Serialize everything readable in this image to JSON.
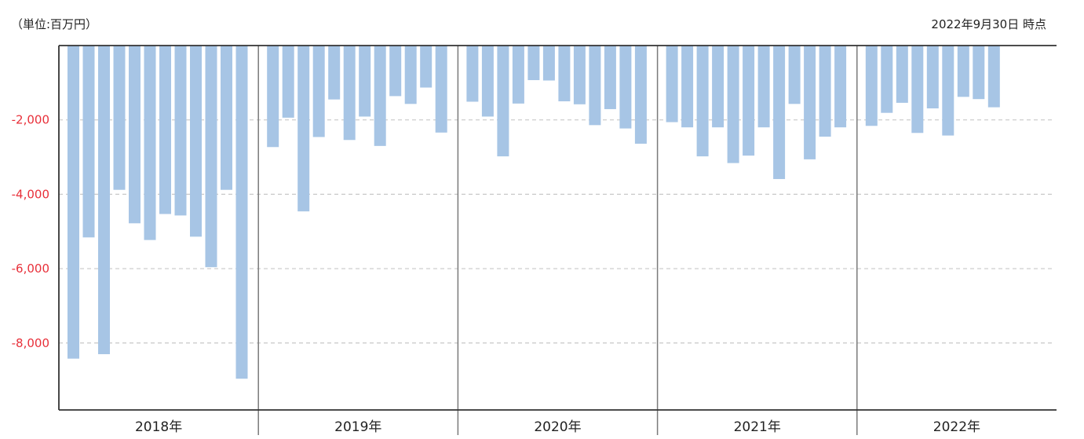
{
  "header": {
    "unit_label": "（単位:百万円）",
    "as_of": "2022年9月30日 時点"
  },
  "chart_data": {
    "type": "bar",
    "ylim": [
      -9800,
      0
    ],
    "ytick_values": [
      -2000,
      -4000,
      -6000,
      -8000
    ],
    "ytick_labels": [
      "-2,000",
      "-4,000",
      "-6,000",
      "-8,000"
    ],
    "grid": "horizontal dashed",
    "bar_color": "#a7c5e5",
    "tick_color": "#e8303a",
    "groups": [
      {
        "label": "2018年",
        "values": [
          -8420,
          -5160,
          -8300,
          -3880,
          -4780,
          -5230,
          -4530,
          -4570,
          -5140,
          -5960,
          -3880,
          -8960
        ]
      },
      {
        "label": "2019年",
        "values": [
          -2730,
          -1940,
          -4460,
          -2460,
          -1450,
          -2540,
          -1910,
          -2700,
          -1360,
          -1570,
          -1130,
          -2340
        ]
      },
      {
        "label": "2020年",
        "values": [
          -1510,
          -1910,
          -2980,
          -1560,
          -930,
          -940,
          -1500,
          -1580,
          -2140,
          -1710,
          -2230,
          -2640
        ]
      },
      {
        "label": "2021年",
        "values": [
          -2060,
          -2200,
          -2980,
          -2200,
          -3160,
          -2960,
          -2200,
          -3590,
          -1570,
          -3060,
          -2450,
          -2200
        ]
      },
      {
        "label": "2022年",
        "values": [
          -2160,
          -1810,
          -1540,
          -2350,
          -1690,
          -2420,
          -1380,
          -1440,
          -1660
        ]
      }
    ]
  }
}
